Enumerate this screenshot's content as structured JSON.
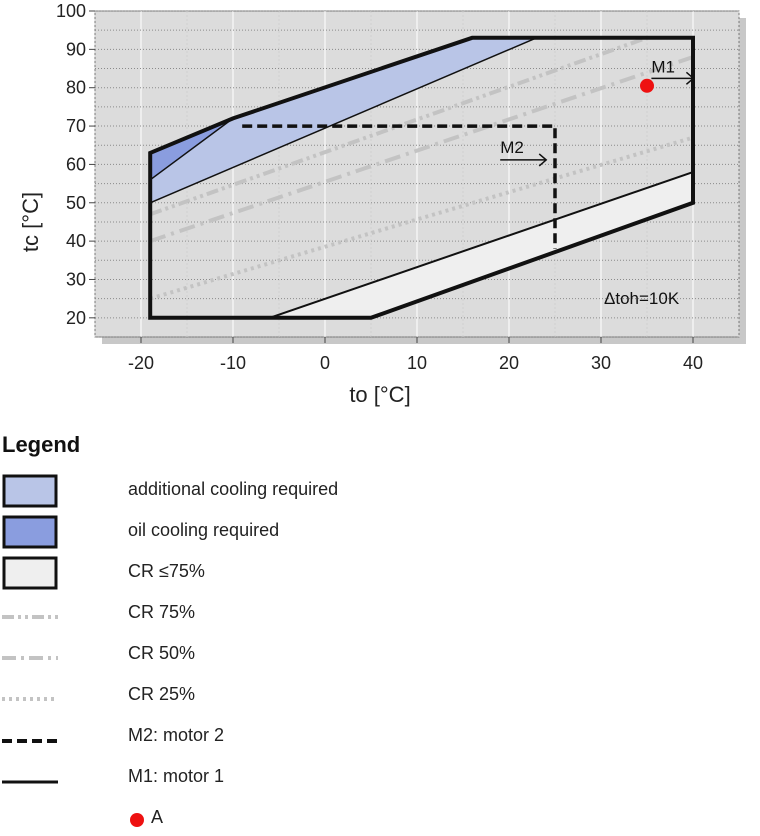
{
  "chart_data": {
    "type": "area",
    "title": "",
    "xlabel": "to [°C]",
    "ylabel": "tc [°C]",
    "xlim": [
      -25,
      45
    ],
    "ylim": [
      15,
      100
    ],
    "x_ticks": [
      -20,
      -10,
      0,
      10,
      20,
      30,
      40
    ],
    "y_ticks": [
      20,
      30,
      40,
      50,
      60,
      70,
      80,
      90,
      100
    ],
    "grid": true,
    "annotation": "Δtoh=10K",
    "regions": {
      "envelope": [
        [
          -19,
          20
        ],
        [
          -19,
          63
        ],
        [
          -10,
          72
        ],
        [
          16,
          93
        ],
        [
          40,
          93
        ],
        [
          40,
          50
        ],
        [
          5,
          20
        ]
      ],
      "additional_cooling": [
        [
          -19,
          50
        ],
        [
          -19,
          63
        ],
        [
          -10,
          72
        ],
        [
          16,
          93
        ],
        [
          23,
          93
        ]
      ],
      "oil_cooling": [
        [
          -19,
          56
        ],
        [
          -19,
          63
        ],
        [
          -10,
          72
        ]
      ],
      "cr_le_75": [
        [
          -6,
          20
        ],
        [
          40,
          58
        ],
        [
          40,
          50
        ],
        [
          5,
          20
        ]
      ]
    },
    "lines": {
      "motor2": [
        [
          -9,
          70
        ],
        [
          25,
          70
        ],
        [
          25,
          38
        ]
      ],
      "cr75": [
        [
          -19,
          47
        ],
        [
          35,
          93
        ]
      ],
      "cr50": [
        [
          -19,
          40
        ],
        [
          40,
          88
        ]
      ],
      "cr25": [
        [
          -19,
          25
        ],
        [
          40,
          67
        ]
      ]
    },
    "labels": {
      "m1": {
        "text": "M1",
        "x": 37,
        "y": 84
      },
      "m2": {
        "text": "M2",
        "x": 21,
        "y": 63
      }
    },
    "point_a": {
      "x": 35,
      "y": 80.5,
      "color": "#ee1111"
    },
    "colors": {
      "additional_cooling": "#b9c5e7",
      "oil_cooling": "#8a9ddf",
      "cr_le_75": "#efefef",
      "cr_line": "#c3c3c3",
      "plot_bg": "#dcdcdc"
    }
  },
  "legend": {
    "title": "Legend",
    "items": [
      {
        "label": "additional cooling required"
      },
      {
        "label": "oil cooling required"
      },
      {
        "label": "CR ≤75%"
      },
      {
        "label": "CR 75%"
      },
      {
        "label": "CR 50%"
      },
      {
        "label": "CR 25%"
      },
      {
        "label": "M2: motor 2"
      },
      {
        "label": "M1: motor 1"
      },
      {
        "label": "A"
      }
    ]
  }
}
